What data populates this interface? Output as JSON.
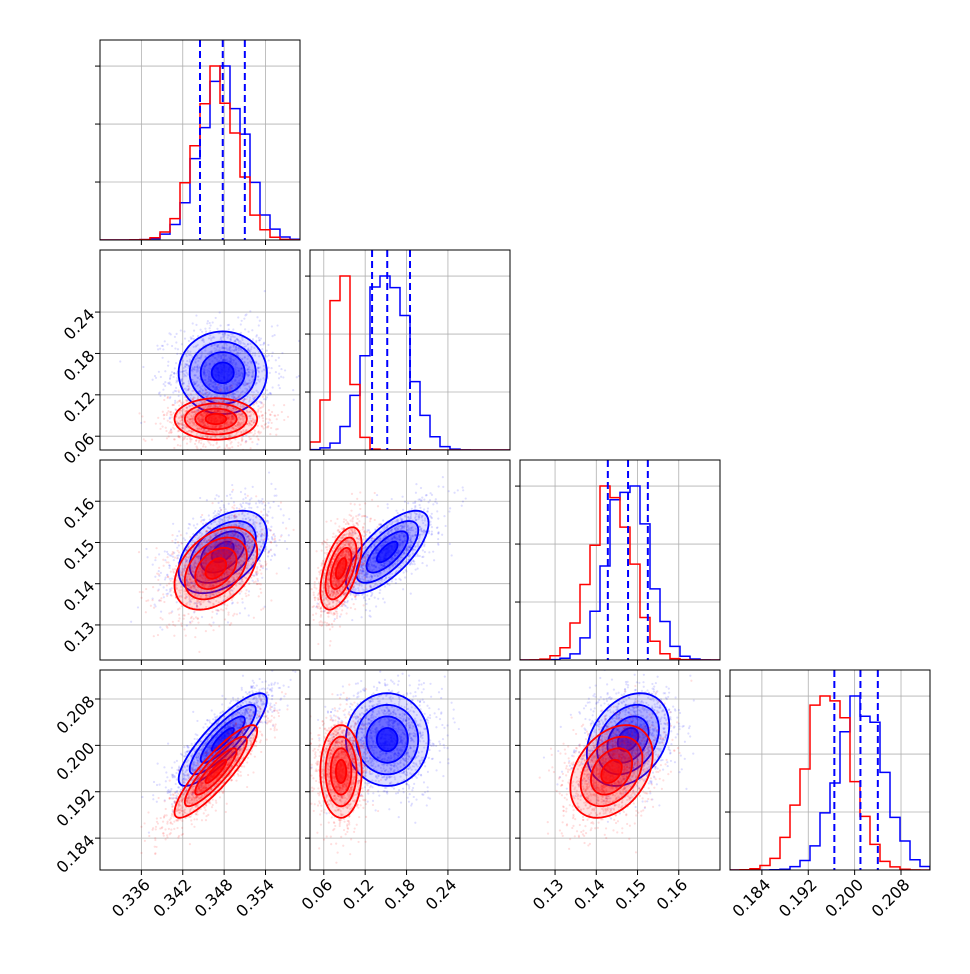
{
  "chart_data": {
    "type": "corner",
    "parameters": [
      {
        "range": [
          0.33,
          0.359
        ],
        "ticks": [
          0.336,
          0.342,
          0.348,
          0.354
        ],
        "tick_labels": [
          "0.336",
          "0.342",
          "0.348",
          "0.354"
        ]
      },
      {
        "range": [
          0.04,
          0.33
        ],
        "ticks": [
          0.06,
          0.12,
          0.18,
          0.24
        ],
        "tick_labels": [
          "0.06",
          "0.12",
          "0.18",
          "0.24"
        ]
      },
      {
        "range": [
          0.1215,
          0.17
        ],
        "ticks": [
          0.13,
          0.14,
          0.15,
          0.16
        ],
        "tick_labels": [
          "0.13",
          "0.14",
          "0.15",
          "0.16"
        ]
      },
      {
        "range": [
          0.1785,
          0.213
        ],
        "ticks": [
          0.184,
          0.192,
          0.2,
          0.208
        ],
        "tick_labels": [
          "0.184",
          "0.192",
          "0.200",
          "0.208"
        ]
      }
    ],
    "series": [
      {
        "color": "#0000ff",
        "means": [
          0.3478,
          0.152,
          0.1477,
          0.201
        ],
        "sigmas": [
          0.0032,
          0.03,
          0.005,
          0.004
        ],
        "correlations": {
          "1-0": 0.0,
          "2-0": 0.45,
          "2-1": 0.7,
          "3-0": 0.85,
          "3-1": 0.0,
          "3-2": 0.3
        },
        "quantiles": [
          [
            0.3445,
            0.3478,
            0.351
          ],
          [
            0.13,
            0.152,
            0.185
          ],
          [
            0.1428,
            0.1477,
            0.1525
          ],
          [
            0.1965,
            0.201,
            0.204
          ]
        ]
      },
      {
        "color": "#ff0000",
        "means": [
          0.3468,
          0.085,
          0.1437,
          0.1955
        ],
        "sigmas": [
          0.003,
          0.015,
          0.005,
          0.004
        ],
        "correlations": {
          "1-0": 0.0,
          "2-0": 0.4,
          "2-1": 0.55,
          "3-0": 0.88,
          "3-1": 0.0,
          "3-2": 0.35
        }
      }
    ],
    "grid": true,
    "quantile_line_style": "dashed",
    "quantile_line_color": "#0000ff"
  }
}
